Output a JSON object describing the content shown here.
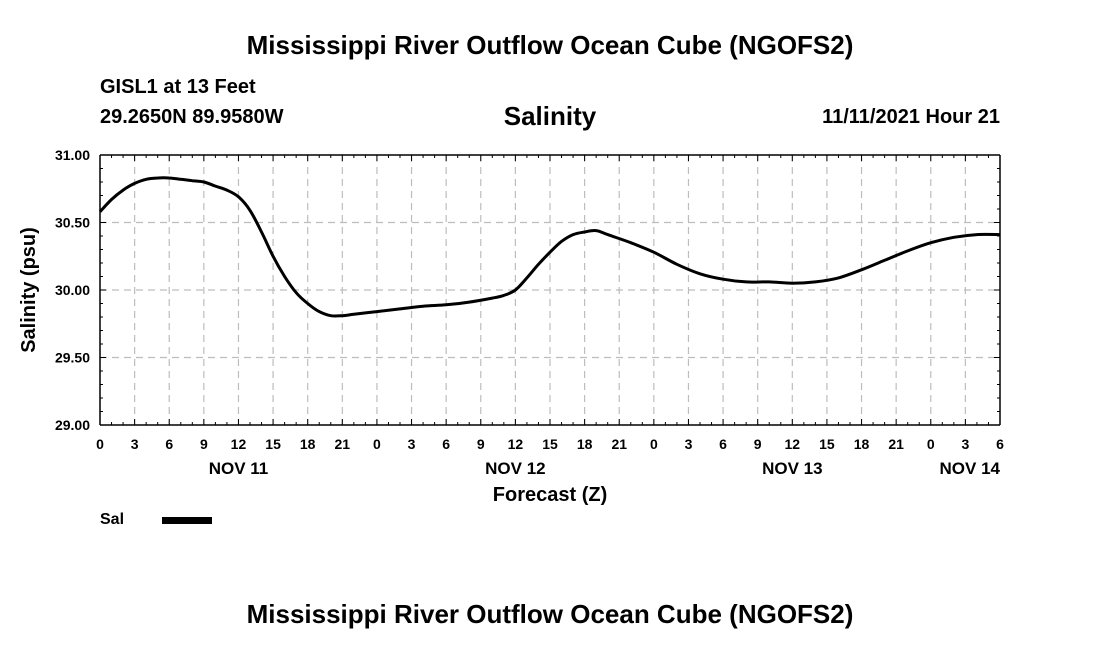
{
  "header": {
    "title": "Mississippi River Outflow Ocean Cube (NGOFS2)",
    "station": "GISL1 at 13 Feet",
    "coords": "29.2650N  89.9580W",
    "subtitle": "Salinity",
    "datetime": "11/11/2021 Hour 21"
  },
  "footer": {
    "title": "Mississippi River Outflow Ocean Cube (NGOFS2)"
  },
  "legend": {
    "label": "Sal",
    "color": "#000000"
  },
  "chart_data": {
    "type": "line",
    "title": "Salinity",
    "xlabel": "Forecast (Z)",
    "ylabel": "Salinity (psu)",
    "ylim": [
      29.0,
      31.0
    ],
    "xlim": [
      0,
      78
    ],
    "x_units": "hours since NOV 11 00Z",
    "grid": true,
    "legend_position": "bottom-left",
    "yticks": [
      {
        "value": 29.0,
        "label": "29.00"
      },
      {
        "value": 29.5,
        "label": "29.50"
      },
      {
        "value": 30.0,
        "label": "30.00"
      },
      {
        "value": 30.5,
        "label": "30.50"
      },
      {
        "value": 31.0,
        "label": "31.00"
      }
    ],
    "xticks": [
      {
        "value": 0,
        "label": "0"
      },
      {
        "value": 3,
        "label": "3"
      },
      {
        "value": 6,
        "label": "6"
      },
      {
        "value": 9,
        "label": "9"
      },
      {
        "value": 12,
        "label": "12"
      },
      {
        "value": 15,
        "label": "15"
      },
      {
        "value": 18,
        "label": "18"
      },
      {
        "value": 21,
        "label": "21"
      },
      {
        "value": 24,
        "label": "0"
      },
      {
        "value": 27,
        "label": "3"
      },
      {
        "value": 30,
        "label": "6"
      },
      {
        "value": 33,
        "label": "9"
      },
      {
        "value": 36,
        "label": "12"
      },
      {
        "value": 39,
        "label": "15"
      },
      {
        "value": 42,
        "label": "18"
      },
      {
        "value": 45,
        "label": "21"
      },
      {
        "value": 48,
        "label": "0"
      },
      {
        "value": 51,
        "label": "3"
      },
      {
        "value": 54,
        "label": "6"
      },
      {
        "value": 57,
        "label": "9"
      },
      {
        "value": 60,
        "label": "12"
      },
      {
        "value": 63,
        "label": "15"
      },
      {
        "value": 66,
        "label": "18"
      },
      {
        "value": 69,
        "label": "21"
      },
      {
        "value": 72,
        "label": "0"
      },
      {
        "value": 75,
        "label": "3"
      },
      {
        "value": 78,
        "label": "6"
      }
    ],
    "day_labels": [
      {
        "value": 12,
        "label": "NOV 11"
      },
      {
        "value": 36,
        "label": "NOV 12"
      },
      {
        "value": 60,
        "label": "NOV 13"
      },
      {
        "value": 78,
        "label": "NOV 14"
      }
    ],
    "series": [
      {
        "name": "Sal",
        "x": [
          0,
          1,
          2,
          3,
          4,
          5,
          6,
          7,
          8,
          9,
          10,
          11,
          12,
          13,
          14,
          15,
          16,
          17,
          18,
          19,
          20,
          21,
          22,
          24,
          26,
          28,
          30,
          32,
          34,
          35,
          36,
          37,
          38,
          39,
          40,
          41,
          42,
          43,
          44,
          46,
          48,
          50,
          52,
          54,
          56,
          58,
          60,
          62,
          64,
          66,
          68,
          70,
          72,
          74,
          76,
          78
        ],
        "values": [
          30.58,
          30.67,
          30.74,
          30.79,
          30.82,
          30.83,
          30.83,
          30.82,
          30.81,
          30.8,
          30.77,
          30.74,
          30.69,
          30.59,
          30.43,
          30.25,
          30.1,
          29.98,
          29.9,
          29.84,
          29.81,
          29.81,
          29.82,
          29.84,
          29.86,
          29.88,
          29.89,
          29.91,
          29.94,
          29.96,
          30.0,
          30.09,
          30.19,
          30.28,
          30.36,
          30.41,
          30.43,
          30.44,
          30.41,
          30.35,
          30.28,
          30.19,
          30.12,
          30.08,
          30.06,
          30.06,
          30.05,
          30.06,
          30.09,
          30.15,
          30.22,
          30.29,
          30.35,
          30.39,
          30.41,
          30.41
        ]
      }
    ]
  }
}
